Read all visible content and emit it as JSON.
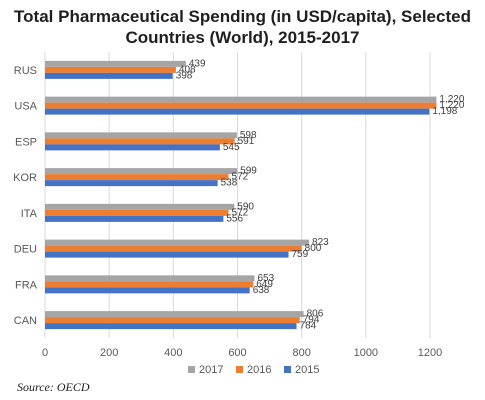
{
  "chart_data": {
    "type": "bar",
    "orientation": "horizontal",
    "title_lines": [
      "Total Pharmaceutical Spending (in USD/capita), Selected",
      "Countries (World), 2015-2017"
    ],
    "categories": [
      "RUS",
      "USA",
      "ESP",
      "KOR",
      "ITA",
      "DEU",
      "FRA",
      "CAN"
    ],
    "series": [
      {
        "name": "2017",
        "color": "#a5a5a5",
        "values": [
          439,
          1220,
          598,
          599,
          590,
          823,
          653,
          806
        ],
        "labels": [
          "439",
          "1,220",
          "598",
          "599",
          "590",
          "823",
          "653",
          "806"
        ]
      },
      {
        "name": "2016",
        "color": "#ed7d31",
        "values": [
          408,
          1220,
          591,
          572,
          572,
          800,
          649,
          794
        ],
        "labels": [
          "408",
          "1,220",
          "591",
          "572",
          "572",
          "800",
          "649",
          "794"
        ]
      },
      {
        "name": "2015",
        "color": "#4472c4",
        "values": [
          398,
          1198,
          545,
          538,
          556,
          759,
          638,
          784
        ],
        "labels": [
          "398",
          "1,198",
          "545",
          "538",
          "556",
          "759",
          "638",
          "784"
        ]
      }
    ],
    "xlim": [
      0,
      1200
    ],
    "xticks": [
      0,
      200,
      400,
      600,
      800,
      1000,
      1200
    ],
    "grid": true,
    "legend_position": "bottom"
  },
  "source": "Source: OECD"
}
